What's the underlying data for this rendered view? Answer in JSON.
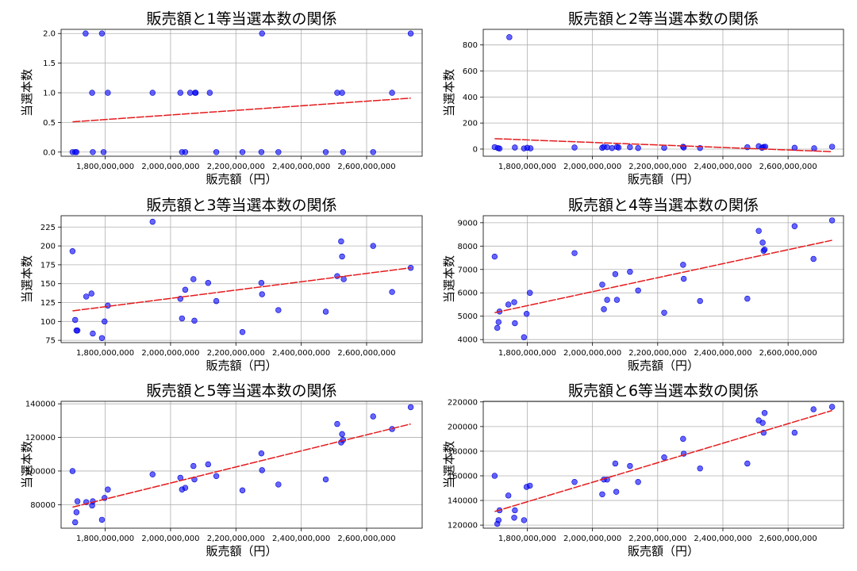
{
  "chart_data": [
    {
      "type": "scatter",
      "title": "販売額と1等当選本数の関係",
      "xlabel": "販売額（円）",
      "ylabel": "当選本数",
      "xlim": [
        1665000000,
        2770000000
      ],
      "ylim": [
        -0.07,
        2.07
      ],
      "xticks": [
        1800000000,
        2000000000,
        2200000000,
        2400000000,
        2600000000
      ],
      "xtick_labels": [
        "1,800,000,000",
        "2,000,000,000",
        "2,200,000,000",
        "2,400,000,000",
        "2,600,000,000"
      ],
      "yticks": [
        0,
        0.5,
        1,
        1.5,
        2
      ],
      "ytick_labels": [
        "0.0",
        "0.5",
        "1.0",
        "1.5",
        "2.0"
      ],
      "grid": true,
      "x": [
        1700000000,
        1708000000,
        1712000000,
        1740000000,
        1760000000,
        1762000000,
        1790000000,
        1795000000,
        1808000000,
        1945000000,
        2030000000,
        2035000000,
        2045000000,
        2060000000,
        2075000000,
        2077000000,
        2120000000,
        2140000000,
        2220000000,
        2278000000,
        2280000000,
        2330000000,
        2475000000,
        2510000000,
        2525000000,
        2528000000,
        2620000000,
        2678000000,
        2735000000
      ],
      "y": [
        0,
        0,
        0,
        2,
        1,
        0,
        2,
        0,
        1,
        1,
        1,
        0,
        0,
        1,
        1,
        1,
        1,
        0,
        0,
        0,
        2,
        0,
        0,
        1,
        1,
        0,
        0,
        1,
        2
      ],
      "trend": {
        "x": [
          1700000000,
          2735000000
        ],
        "y": [
          0.51,
          0.91
        ]
      }
    },
    {
      "type": "scatter",
      "title": "販売額と2等当選本数の関係",
      "xlabel": "販売額（円）",
      "ylabel": "当選本数",
      "xlim": [
        1665000000,
        2770000000
      ],
      "ylim": [
        -55,
        920
      ],
      "xticks": [
        1800000000,
        2000000000,
        2200000000,
        2400000000,
        2600000000
      ],
      "xtick_labels": [
        "1,800,000,000",
        "2,000,000,000",
        "2,200,000,000",
        "2,400,000,000",
        "2,600,000,000"
      ],
      "yticks": [
        0,
        200,
        400,
        600,
        800
      ],
      "ytick_labels": [
        "0",
        "200",
        "400",
        "600",
        "800"
      ],
      "grid": true,
      "x": [
        1700000000,
        1710000000,
        1715000000,
        1745000000,
        1762000000,
        1790000000,
        1800000000,
        1810000000,
        1945000000,
        2030000000,
        2035000000,
        2045000000,
        2060000000,
        2075000000,
        2080000000,
        2115000000,
        2140000000,
        2220000000,
        2278000000,
        2280000000,
        2330000000,
        2475000000,
        2510000000,
        2520000000,
        2525000000,
        2530000000,
        2620000000,
        2680000000,
        2735000000
      ],
      "y": [
        15,
        8,
        4,
        860,
        12,
        5,
        10,
        6,
        12,
        10,
        18,
        14,
        8,
        16,
        12,
        14,
        8,
        10,
        18,
        12,
        8,
        14,
        22,
        10,
        16,
        18,
        10,
        6,
        18
      ],
      "trend": {
        "x": [
          1700000000,
          2735000000
        ],
        "y": [
          80,
          -20
        ]
      }
    },
    {
      "type": "scatter",
      "title": "販売額と3等当選本数の関係",
      "xlabel": "販売額（円）",
      "ylabel": "当選本数",
      "xlim": [
        1665000000,
        2770000000
      ],
      "ylim": [
        72,
        240
      ],
      "xticks": [
        1800000000,
        2000000000,
        2200000000,
        2400000000,
        2600000000
      ],
      "xtick_labels": [
        "1,800,000,000",
        "2,000,000,000",
        "2,200,000,000",
        "2,400,000,000",
        "2,600,000,000"
      ],
      "yticks": [
        75,
        100,
        125,
        150,
        175,
        200,
        225
      ],
      "ytick_labels": [
        "75",
        "100",
        "125",
        "150",
        "175",
        "200",
        "225"
      ],
      "grid": true,
      "x": [
        1700000000,
        1708000000,
        1712000000,
        1715000000,
        1742000000,
        1758000000,
        1762000000,
        1790000000,
        1798000000,
        1808000000,
        1945000000,
        2030000000,
        2035000000,
        2045000000,
        2070000000,
        2073000000,
        2115000000,
        2140000000,
        2220000000,
        2278000000,
        2280000000,
        2330000000,
        2475000000,
        2510000000,
        2522000000,
        2525000000,
        2530000000,
        2620000000,
        2678000000,
        2735000000
      ],
      "y": [
        193,
        102,
        88,
        88,
        133,
        137,
        84,
        78,
        100,
        121,
        232,
        130,
        104,
        142,
        156,
        101,
        151,
        127,
        86,
        151,
        136,
        115,
        113,
        160,
        206,
        186,
        156,
        200,
        139,
        171
      ],
      "trend": {
        "x": [
          1700000000,
          2735000000
        ],
        "y": [
          114,
          171
        ]
      }
    },
    {
      "type": "scatter",
      "title": "販売額と4等当選本数の関係",
      "xlabel": "販売額（円）",
      "ylabel": "当選本数",
      "xlim": [
        1665000000,
        2770000000
      ],
      "ylim": [
        3870,
        9300
      ],
      "xticks": [
        1800000000,
        2000000000,
        2200000000,
        2400000000,
        2600000000
      ],
      "xtick_labels": [
        "1,800,000,000",
        "2,000,000,000",
        "2,200,000,000",
        "2,400,000,000",
        "2,600,000,000"
      ],
      "yticks": [
        4000,
        5000,
        6000,
        7000,
        8000,
        9000
      ],
      "ytick_labels": [
        "4000",
        "5000",
        "6000",
        "7000",
        "8000",
        "9000"
      ],
      "grid": true,
      "x": [
        1700000000,
        1708000000,
        1712000000,
        1715000000,
        1742000000,
        1760000000,
        1762000000,
        1790000000,
        1798000000,
        1808000000,
        1945000000,
        2030000000,
        2035000000,
        2045000000,
        2070000000,
        2075000000,
        2115000000,
        2140000000,
        2220000000,
        2278000000,
        2280000000,
        2330000000,
        2475000000,
        2510000000,
        2522000000,
        2525000000,
        2528000000,
        2620000000,
        2678000000,
        2735000000
      ],
      "y": [
        7550,
        4500,
        4750,
        5200,
        5500,
        5600,
        4700,
        4100,
        5100,
        6000,
        7700,
        6350,
        5300,
        5700,
        6800,
        5700,
        6900,
        6100,
        5150,
        7200,
        6600,
        5650,
        5750,
        8650,
        8150,
        7800,
        7850,
        8850,
        7450,
        9100
      ],
      "trend": {
        "x": [
          1700000000,
          2735000000
        ],
        "y": [
          5150,
          8250
        ]
      }
    },
    {
      "type": "scatter",
      "title": "販売額と5等当選本数の関係",
      "xlabel": "販売額（円）",
      "ylabel": "当選本数",
      "xlim": [
        1665000000,
        2770000000
      ],
      "ylim": [
        66000,
        141500
      ],
      "xticks": [
        1800000000,
        2000000000,
        2200000000,
        2400000000,
        2600000000
      ],
      "xtick_labels": [
        "1,800,000,000",
        "2,000,000,000",
        "2,200,000,000",
        "2,400,000,000",
        "2,600,000,000"
      ],
      "yticks": [
        80000,
        100000,
        120000,
        140000
      ],
      "ytick_labels": [
        "80000",
        "100000",
        "120000",
        "140000"
      ],
      "grid": true,
      "x": [
        1700000000,
        1708000000,
        1712000000,
        1715000000,
        1742000000,
        1760000000,
        1762000000,
        1790000000,
        1798000000,
        1808000000,
        1945000000,
        2030000000,
        2035000000,
        2045000000,
        2070000000,
        2073000000,
        2115000000,
        2140000000,
        2220000000,
        2278000000,
        2280000000,
        2330000000,
        2475000000,
        2510000000,
        2522000000,
        2525000000,
        2528000000,
        2620000000,
        2678000000,
        2735000000
      ],
      "y": [
        100000,
        69500,
        75500,
        82000,
        81500,
        79500,
        82000,
        71000,
        84000,
        89000,
        98000,
        96000,
        89000,
        90000,
        103000,
        95000,
        104000,
        97000,
        88500,
        110500,
        100500,
        92000,
        95000,
        128000,
        117000,
        122000,
        118500,
        132500,
        125000,
        138000
      ],
      "trend": {
        "x": [
          1700000000,
          2735000000
        ],
        "y": [
          78500,
          128000
        ]
      }
    },
    {
      "type": "scatter",
      "title": "販売額と6等当選本数の関係",
      "xlabel": "販売額（円）",
      "ylabel": "当選本数",
      "xlim": [
        1665000000,
        2770000000
      ],
      "ylim": [
        117500,
        220500
      ],
      "xticks": [
        1800000000,
        2000000000,
        2200000000,
        2400000000,
        2600000000
      ],
      "xtick_labels": [
        "1,800,000,000",
        "2,000,000,000",
        "2,200,000,000",
        "2,400,000,000",
        "2,600,000,000"
      ],
      "yticks": [
        120000,
        140000,
        160000,
        180000,
        200000,
        220000
      ],
      "ytick_labels": [
        "120000",
        "140000",
        "160000",
        "180000",
        "200000",
        "220000"
      ],
      "grid": true,
      "x": [
        1700000000,
        1708000000,
        1712000000,
        1715000000,
        1742000000,
        1760000000,
        1762000000,
        1790000000,
        1798000000,
        1808000000,
        1945000000,
        2030000000,
        2035000000,
        2045000000,
        2070000000,
        2073000000,
        2115000000,
        2140000000,
        2220000000,
        2278000000,
        2280000000,
        2330000000,
        2475000000,
        2510000000,
        2522000000,
        2525000000,
        2528000000,
        2620000000,
        2678000000,
        2735000000
      ],
      "y": [
        160000,
        121000,
        124000,
        132000,
        144000,
        126000,
        132000,
        124000,
        151000,
        152000,
        155000,
        145000,
        157000,
        157000,
        170000,
        147000,
        168000,
        155000,
        175000,
        190000,
        178000,
        166000,
        170000,
        205000,
        203000,
        195000,
        211000,
        195000,
        214000,
        216000
      ],
      "trend": {
        "x": [
          1700000000,
          2735000000
        ],
        "y": [
          131000,
          213000
        ]
      }
    }
  ]
}
